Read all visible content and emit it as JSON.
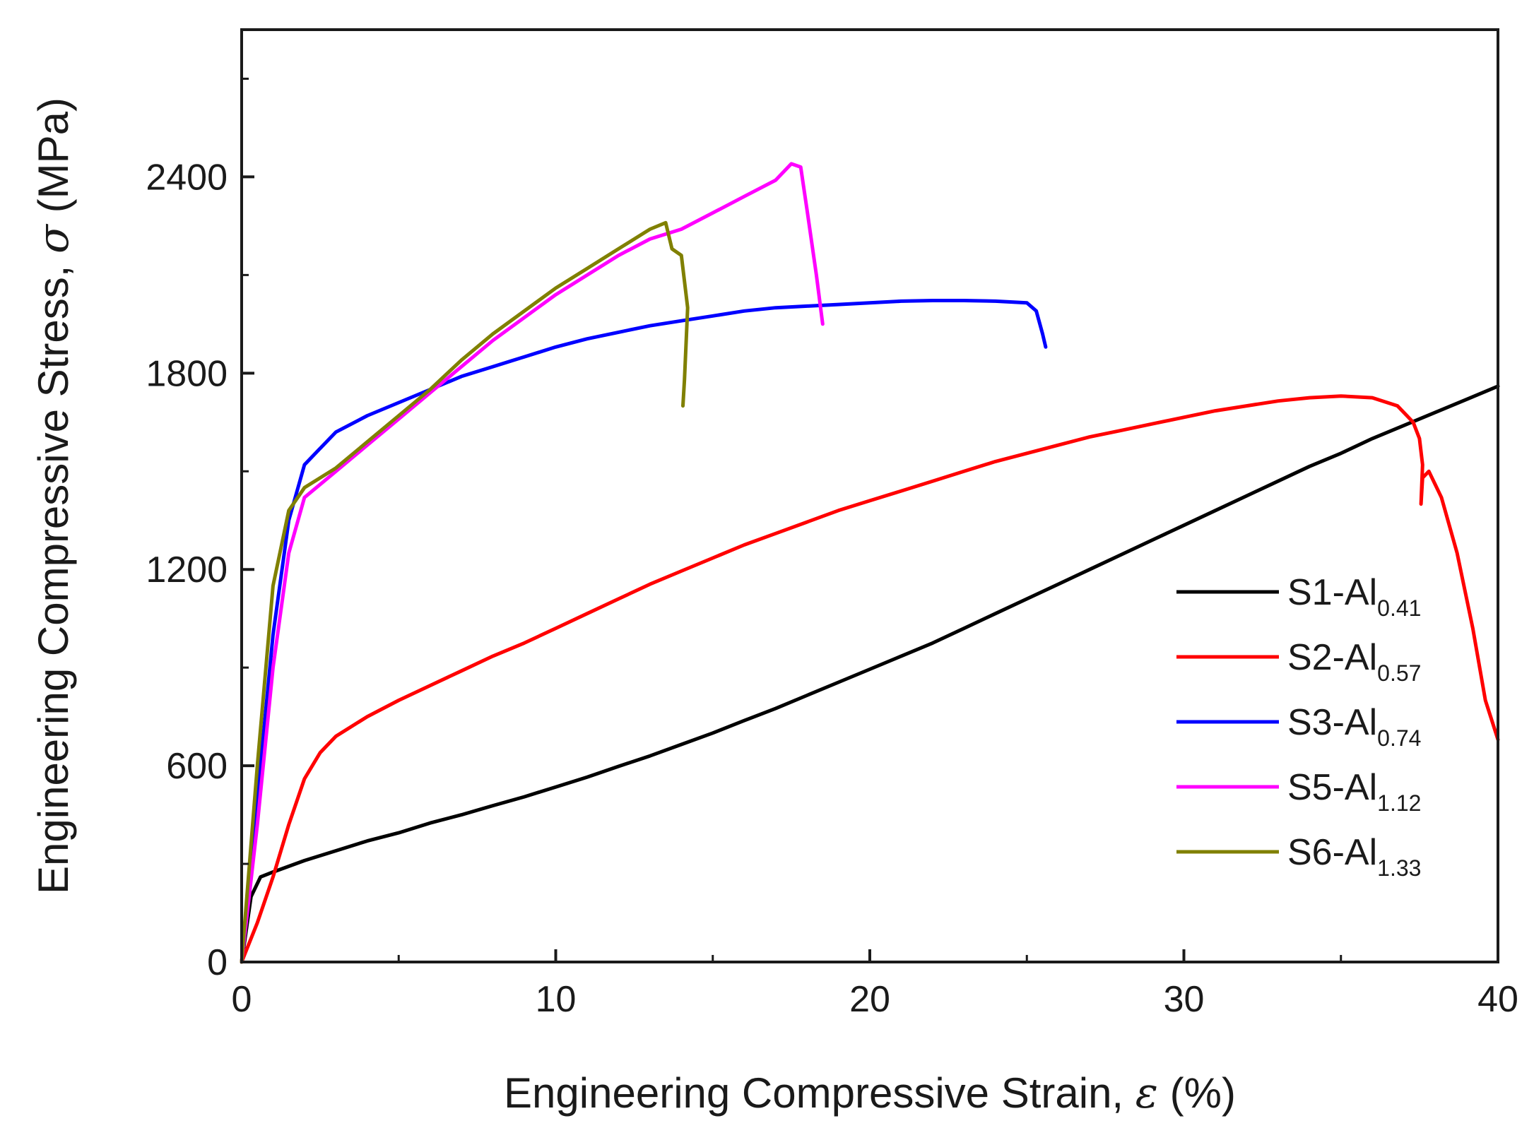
{
  "chart_data": {
    "type": "line",
    "xlabel": {
      "prefix": "Engineering Compressive Strain, ",
      "symbol": "ε",
      "unit": " (%)"
    },
    "ylabel": {
      "prefix": "Engineering Compressive Stress, ",
      "symbol": "σ",
      "unit": " (MPa)"
    },
    "xlim": [
      0,
      40
    ],
    "ylim": [
      0,
      2850
    ],
    "xticks": [
      0,
      10,
      20,
      30,
      40
    ],
    "xtick_labels": [
      "0",
      "10",
      "20",
      "30",
      "40"
    ],
    "yticks": [
      0,
      600,
      1200,
      1800,
      2400
    ],
    "ytick_labels": [
      "0",
      "600",
      "1200",
      "1800",
      "2400"
    ],
    "legend_position": "right",
    "series": [
      {
        "name": "S1-Al0.41",
        "base": "S1-Al",
        "subscript": "0.41",
        "color": "#000000",
        "points": [
          [
            0,
            0
          ],
          [
            0.3,
            200
          ],
          [
            0.6,
            260
          ],
          [
            1,
            275
          ],
          [
            2,
            310
          ],
          [
            3,
            340
          ],
          [
            4,
            370
          ],
          [
            5,
            395
          ],
          [
            6,
            425
          ],
          [
            7,
            450
          ],
          [
            8,
            478
          ],
          [
            9,
            505
          ],
          [
            10,
            535
          ],
          [
            11,
            565
          ],
          [
            12,
            598
          ],
          [
            13,
            630
          ],
          [
            14,
            665
          ],
          [
            15,
            700
          ],
          [
            16,
            738
          ],
          [
            17,
            775
          ],
          [
            18,
            815
          ],
          [
            19,
            855
          ],
          [
            20,
            895
          ],
          [
            21,
            935
          ],
          [
            22,
            975
          ],
          [
            23,
            1020
          ],
          [
            24,
            1065
          ],
          [
            25,
            1110
          ],
          [
            26,
            1155
          ],
          [
            27,
            1200
          ],
          [
            28,
            1245
          ],
          [
            29,
            1290
          ],
          [
            30,
            1335
          ],
          [
            31,
            1380
          ],
          [
            32,
            1425
          ],
          [
            33,
            1470
          ],
          [
            34,
            1515
          ],
          [
            35,
            1555
          ],
          [
            36,
            1600
          ],
          [
            37,
            1640
          ],
          [
            38,
            1680
          ],
          [
            39,
            1720
          ],
          [
            40,
            1760
          ]
        ]
      },
      {
        "name": "S2-Al0.57",
        "base": "S2-Al",
        "subscript": "0.57",
        "color": "#ff0000",
        "points": [
          [
            0,
            0
          ],
          [
            0.5,
            120
          ],
          [
            1,
            260
          ],
          [
            1.5,
            420
          ],
          [
            2,
            560
          ],
          [
            2.5,
            640
          ],
          [
            3,
            690
          ],
          [
            4,
            750
          ],
          [
            5,
            800
          ],
          [
            6,
            845
          ],
          [
            7,
            890
          ],
          [
            8,
            935
          ],
          [
            9,
            975
          ],
          [
            10,
            1020
          ],
          [
            11,
            1065
          ],
          [
            12,
            1110
          ],
          [
            13,
            1155
          ],
          [
            14,
            1195
          ],
          [
            15,
            1235
          ],
          [
            16,
            1275
          ],
          [
            17,
            1310
          ],
          [
            18,
            1345
          ],
          [
            19,
            1380
          ],
          [
            20,
            1410
          ],
          [
            21,
            1440
          ],
          [
            22,
            1470
          ],
          [
            23,
            1500
          ],
          [
            24,
            1530
          ],
          [
            25,
            1555
          ],
          [
            26,
            1580
          ],
          [
            27,
            1605
          ],
          [
            28,
            1625
          ],
          [
            29,
            1645
          ],
          [
            30,
            1665
          ],
          [
            31,
            1685
          ],
          [
            32,
            1700
          ],
          [
            33,
            1715
          ],
          [
            34,
            1725
          ],
          [
            35,
            1730
          ],
          [
            36,
            1725
          ],
          [
            36.8,
            1700
          ],
          [
            37.3,
            1650
          ],
          [
            37.5,
            1600
          ],
          [
            37.6,
            1520
          ],
          [
            37.55,
            1400
          ],
          [
            37.6,
            1480
          ],
          [
            37.8,
            1500
          ],
          [
            38.2,
            1420
          ],
          [
            38.7,
            1250
          ],
          [
            39.2,
            1020
          ],
          [
            39.6,
            800
          ],
          [
            40,
            680
          ]
        ]
      },
      {
        "name": "S3-Al0.74",
        "base": "S3-Al",
        "subscript": "0.74",
        "color": "#0000ff",
        "points": [
          [
            0,
            0
          ],
          [
            0.5,
            500
          ],
          [
            1,
            1000
          ],
          [
            1.5,
            1350
          ],
          [
            2,
            1520
          ],
          [
            2.5,
            1570
          ],
          [
            3,
            1620
          ],
          [
            4,
            1670
          ],
          [
            5,
            1710
          ],
          [
            6,
            1750
          ],
          [
            7,
            1790
          ],
          [
            8,
            1820
          ],
          [
            9,
            1850
          ],
          [
            10,
            1880
          ],
          [
            11,
            1905
          ],
          [
            12,
            1925
          ],
          [
            13,
            1945
          ],
          [
            14,
            1960
          ],
          [
            15,
            1975
          ],
          [
            16,
            1990
          ],
          [
            17,
            2000
          ],
          [
            18,
            2005
          ],
          [
            19,
            2010
          ],
          [
            20,
            2015
          ],
          [
            21,
            2020
          ],
          [
            22,
            2022
          ],
          [
            23,
            2022
          ],
          [
            24,
            2020
          ],
          [
            25,
            2015
          ],
          [
            25.3,
            1990
          ],
          [
            25.5,
            1920
          ],
          [
            25.6,
            1880
          ]
        ]
      },
      {
        "name": "S5-Al1.12",
        "base": "S5-Al",
        "subscript": "1.12",
        "color": "#ff00ff",
        "points": [
          [
            0,
            0
          ],
          [
            0.5,
            420
          ],
          [
            1,
            900
          ],
          [
            1.5,
            1250
          ],
          [
            2,
            1420
          ],
          [
            3,
            1500
          ],
          [
            4,
            1580
          ],
          [
            5,
            1660
          ],
          [
            6,
            1740
          ],
          [
            7,
            1820
          ],
          [
            8,
            1900
          ],
          [
            9,
            1970
          ],
          [
            10,
            2040
          ],
          [
            11,
            2100
          ],
          [
            12,
            2160
          ],
          [
            13,
            2210
          ],
          [
            14,
            2240
          ],
          [
            15,
            2290
          ],
          [
            16,
            2340
          ],
          [
            17,
            2390
          ],
          [
            17.5,
            2440
          ],
          [
            17.8,
            2430
          ],
          [
            18,
            2300
          ],
          [
            18.3,
            2100
          ],
          [
            18.5,
            1950
          ]
        ]
      },
      {
        "name": "S6-Al1.33",
        "base": "S6-Al",
        "subscript": "1.33",
        "color": "#808000",
        "points": [
          [
            0,
            0
          ],
          [
            0.5,
            600
          ],
          [
            1,
            1150
          ],
          [
            1.5,
            1380
          ],
          [
            2,
            1450
          ],
          [
            3,
            1510
          ],
          [
            4,
            1590
          ],
          [
            5,
            1670
          ],
          [
            6,
            1750
          ],
          [
            7,
            1840
          ],
          [
            8,
            1920
          ],
          [
            9,
            1990
          ],
          [
            10,
            2060
          ],
          [
            11,
            2120
          ],
          [
            12,
            2180
          ],
          [
            13,
            2240
          ],
          [
            13.5,
            2260
          ],
          [
            13.7,
            2180
          ],
          [
            14,
            2160
          ],
          [
            14.2,
            2000
          ],
          [
            14.1,
            1780
          ],
          [
            14.05,
            1700
          ]
        ]
      }
    ]
  }
}
